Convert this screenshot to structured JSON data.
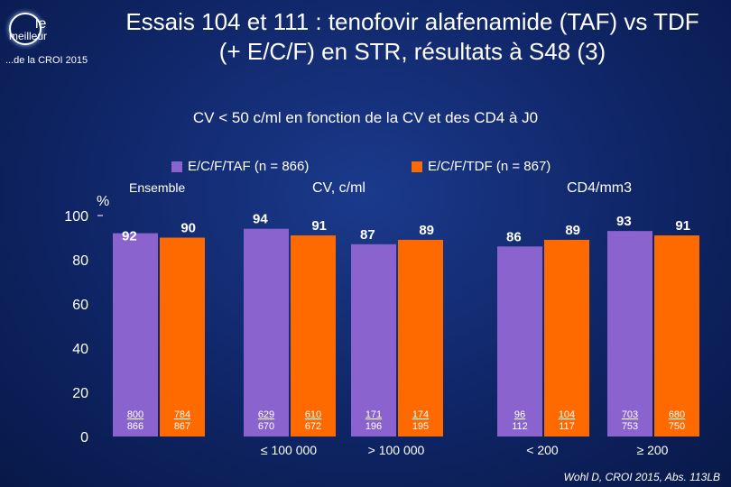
{
  "logo": {
    "line1": "le",
    "line2": "meilleur",
    "line3": "...de la CROI 2015"
  },
  "slide": {
    "title_line1": "Essais 104 et 111 : tenofovir alafenamide (TAF) vs TDF",
    "title_line2": "(+ E/C/F) en STR, résultats à S48 (3)",
    "source": "Wohl D, CROI 2015, Abs. 113LB"
  },
  "colors": {
    "taf": "#8a63cf",
    "tdf": "#ff6a00",
    "background": "#0f2566"
  },
  "chart_data": {
    "type": "bar",
    "title": "CV < 50 c/ml en fonction de la CV et des CD4 à J0",
    "ylabel": "%",
    "ylim": [
      0,
      100
    ],
    "yticks": [
      "100",
      "80",
      "60",
      "40",
      "20",
      "0"
    ],
    "group_headers": {
      "overall": "Ensemble",
      "viral_load": "CV, c/ml",
      "cd4": "CD4/mm3"
    },
    "categories": [
      "Ensemble",
      "≤ 100 000",
      "> 100 000",
      "< 200",
      "≥ 200"
    ],
    "series": [
      {
        "name": "E/C/F/TAF (n = 866)",
        "values": [
          92,
          94,
          87,
          86,
          93
        ],
        "counts": [
          [
            "800",
            "866"
          ],
          [
            "629",
            "670"
          ],
          [
            "171",
            "196"
          ],
          [
            "96",
            "112"
          ],
          [
            "703",
            "753"
          ]
        ]
      },
      {
        "name": "E/C/F/TDF (n = 867)",
        "values": [
          90,
          91,
          89,
          89,
          91
        ],
        "counts": [
          [
            "784",
            "867"
          ],
          [
            "610",
            "672"
          ],
          [
            "174",
            "195"
          ],
          [
            "104",
            "117"
          ],
          [
            "680",
            "750"
          ]
        ]
      }
    ]
  }
}
